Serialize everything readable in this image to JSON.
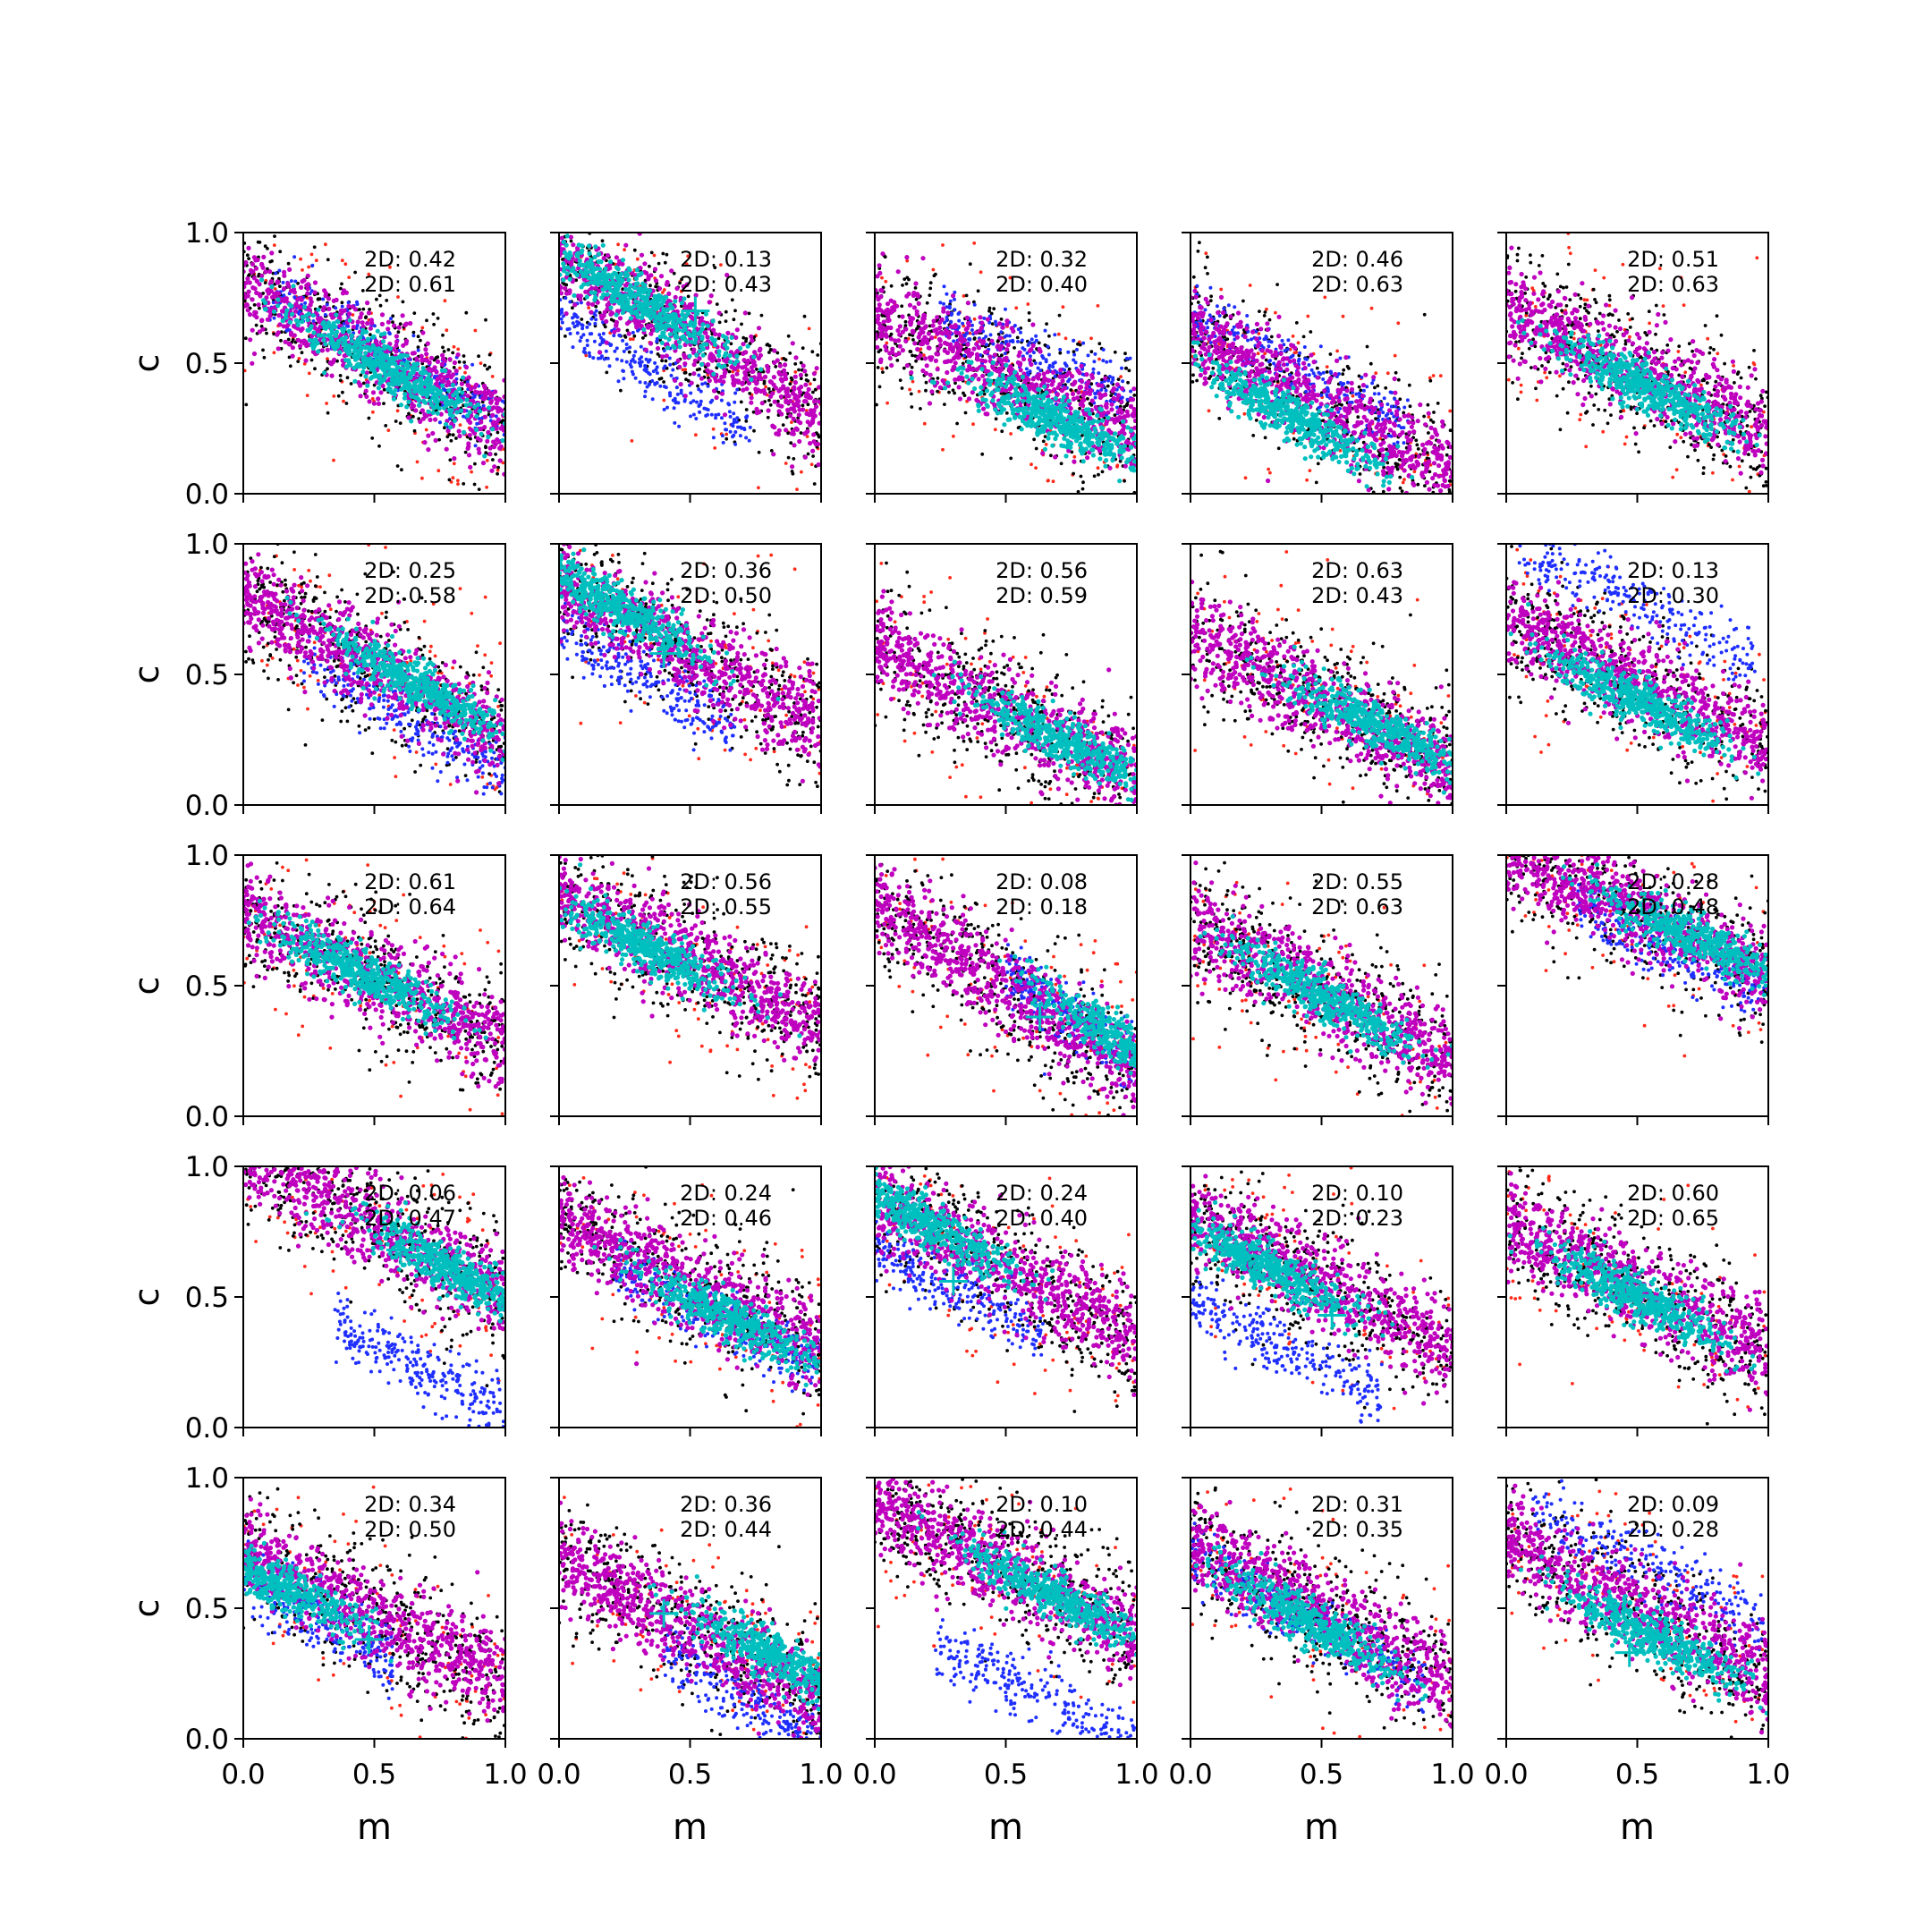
{
  "figure": {
    "rows": 5,
    "cols": 5,
    "xlabel": "m",
    "ylabel": "c",
    "xlim": [
      0,
      1
    ],
    "ylim": [
      0,
      1
    ],
    "xticks": [
      "0.0",
      "0.5",
      "1.0"
    ],
    "yticks": [
      "0.0",
      "0.5",
      "1.0"
    ],
    "colors": {
      "outer": "#ff2a1a",
      "black": "#000000",
      "blue": "#1f2fff",
      "magenta": "#bf00bf",
      "cyan": "#00bfbf",
      "marker": "#00bfbf"
    }
  },
  "chart_data": {
    "type": "scatter",
    "grid": false,
    "legend": "none",
    "description_of_series": [
      "red points",
      "black points",
      "blue points",
      "magenta points",
      "cyan points",
      "cyan plus marker"
    ],
    "panels": [
      {
        "row": 0,
        "col": 0,
        "label1": "2D: 0.42",
        "label2": "2D: 0.61",
        "slope": -0.55,
        "intercept": 0.8,
        "core_center": [
          0.55,
          0.48
        ],
        "blue_offset": 0.03,
        "marker": null
      },
      {
        "row": 0,
        "col": 1,
        "label1": "2D: 0.13",
        "label2": "2D: 0.43",
        "slope": -0.6,
        "intercept": 0.9,
        "core_center": [
          0.28,
          0.75
        ],
        "blue_offset": -0.22,
        "marker": [
          0.52,
          0.7
        ]
      },
      {
        "row": 0,
        "col": 2,
        "label1": "2D: 0.32",
        "label2": "2D: 0.40",
        "slope": -0.45,
        "intercept": 0.68,
        "core_center": [
          0.7,
          0.28
        ],
        "blue_offset": 0.12,
        "marker": null
      },
      {
        "row": 0,
        "col": 3,
        "label1": "2D: 0.46",
        "label2": "2D: 0.63",
        "slope": -0.55,
        "intercept": 0.62,
        "core_center": [
          0.38,
          0.3
        ],
        "blue_offset": 0.08,
        "marker": null
      },
      {
        "row": 0,
        "col": 4,
        "label1": "2D: 0.51",
        "label2": "2D: 0.63",
        "slope": -0.5,
        "intercept": 0.72,
        "core_center": [
          0.55,
          0.4
        ],
        "blue_offset": 0.0,
        "marker": null
      },
      {
        "row": 1,
        "col": 0,
        "label1": "2D: 0.25",
        "label2": "2D: 0.58",
        "slope": -0.55,
        "intercept": 0.8,
        "core_center": [
          0.68,
          0.45
        ],
        "blue_offset": -0.12,
        "marker": [
          0.5,
          0.57
        ]
      },
      {
        "row": 1,
        "col": 1,
        "label1": "2D: 0.36",
        "label2": "2D: 0.50",
        "slope": -0.55,
        "intercept": 0.85,
        "core_center": [
          0.22,
          0.76
        ],
        "blue_offset": -0.18,
        "marker": [
          0.4,
          0.58
        ]
      },
      {
        "row": 1,
        "col": 2,
        "label1": "2D: 0.56",
        "label2": "2D: 0.59",
        "slope": -0.5,
        "intercept": 0.6,
        "core_center": [
          0.72,
          0.25
        ],
        "blue_offset": 0.0,
        "marker": null
      },
      {
        "row": 1,
        "col": 3,
        "label1": "2D: 0.63",
        "label2": "2D: 0.43",
        "slope": -0.5,
        "intercept": 0.65,
        "core_center": [
          0.72,
          0.3
        ],
        "blue_offset": 0.0,
        "marker": null
      },
      {
        "row": 1,
        "col": 4,
        "label1": "2D: 0.13",
        "label2": "2D: 0.30",
        "slope": -0.5,
        "intercept": 0.72,
        "core_center": [
          0.5,
          0.4
        ],
        "blue_offset": 0.3,
        "marker": null
      },
      {
        "row": 2,
        "col": 0,
        "label1": "2D: 0.61",
        "label2": "2D: 0.64",
        "slope": -0.5,
        "intercept": 0.78,
        "core_center": [
          0.45,
          0.55
        ],
        "blue_offset": 0.0,
        "marker": null
      },
      {
        "row": 2,
        "col": 1,
        "label1": "2D: 0.56",
        "label2": "2D: 0.55",
        "slope": -0.5,
        "intercept": 0.85,
        "core_center": [
          0.32,
          0.65
        ],
        "blue_offset": 0.0,
        "marker": null
      },
      {
        "row": 2,
        "col": 2,
        "label1": "2D: 0.08",
        "label2": "2D: 0.18",
        "slope": -0.65,
        "intercept": 0.82,
        "core_center": [
          0.95,
          0.28
        ],
        "blue_offset": 0.05,
        "marker": [
          0.63,
          0.38
        ]
      },
      {
        "row": 2,
        "col": 3,
        "label1": "2D: 0.55",
        "label2": "2D: 0.63",
        "slope": -0.55,
        "intercept": 0.75,
        "core_center": [
          0.52,
          0.45
        ],
        "blue_offset": 0.0,
        "marker": null
      },
      {
        "row": 2,
        "col": 4,
        "label1": "2D: 0.28",
        "label2": "2D: 0.48",
        "slope": -0.45,
        "intercept": 1.0,
        "core_center": [
          0.72,
          0.68
        ],
        "blue_offset": -0.08,
        "marker": null
      },
      {
        "row": 3,
        "col": 0,
        "label1": "2D: 0.06",
        "label2": "2D: 0.47",
        "slope": -0.55,
        "intercept": 1.05,
        "core_center": [
          0.8,
          0.6
        ],
        "blue_offset": -0.45,
        "marker": [
          0.6,
          0.68
        ]
      },
      {
        "row": 3,
        "col": 1,
        "label1": "2D: 0.24",
        "label2": "2D: 0.46",
        "slope": -0.5,
        "intercept": 0.8,
        "core_center": [
          0.65,
          0.42
        ],
        "blue_offset": -0.08,
        "marker": null
      },
      {
        "row": 3,
        "col": 2,
        "label1": "2D: 0.24",
        "label2": "2D: 0.40",
        "slope": -0.55,
        "intercept": 0.88,
        "core_center": [
          0.2,
          0.78
        ],
        "blue_offset": -0.18,
        "marker": [
          0.3,
          0.56
        ]
      },
      {
        "row": 3,
        "col": 3,
        "label1": "2D: 0.10",
        "label2": "2D: 0.23",
        "slope": -0.5,
        "intercept": 0.8,
        "core_center": [
          0.28,
          0.62
        ],
        "blue_offset": -0.32,
        "marker": [
          0.54,
          0.43
        ]
      },
      {
        "row": 3,
        "col": 4,
        "label1": "2D: 0.60",
        "label2": "2D: 0.65",
        "slope": -0.5,
        "intercept": 0.78,
        "core_center": [
          0.5,
          0.5
        ],
        "blue_offset": 0.0,
        "marker": null
      },
      {
        "row": 4,
        "col": 0,
        "label1": "2D: 0.34",
        "label2": "2D: 0.50",
        "slope": -0.5,
        "intercept": 0.72,
        "core_center": [
          0.12,
          0.6
        ],
        "blue_offset": -0.12,
        "marker": [
          0.48,
          0.38
        ]
      },
      {
        "row": 4,
        "col": 1,
        "label1": "2D: 0.36",
        "label2": "2D: 0.44",
        "slope": -0.55,
        "intercept": 0.7,
        "core_center": [
          0.85,
          0.3
        ],
        "blue_offset": -0.15,
        "marker": [
          0.4,
          0.48
        ]
      },
      {
        "row": 4,
        "col": 2,
        "label1": "2D: 0.10",
        "label2": "2D: 0.44",
        "slope": -0.5,
        "intercept": 0.9,
        "core_center": [
          0.68,
          0.55
        ],
        "blue_offset": -0.42,
        "marker": null
      },
      {
        "row": 4,
        "col": 3,
        "label1": "2D: 0.31",
        "label2": "2D: 0.35",
        "slope": -0.55,
        "intercept": 0.75,
        "core_center": [
          0.45,
          0.45
        ],
        "blue_offset": -0.05,
        "marker": null
      },
      {
        "row": 4,
        "col": 4,
        "label1": "2D: 0.09",
        "label2": "2D: 0.28",
        "slope": -0.5,
        "intercept": 0.75,
        "core_center": [
          0.55,
          0.4
        ],
        "blue_offset": 0.18,
        "marker": [
          0.47,
          0.33
        ]
      }
    ]
  }
}
